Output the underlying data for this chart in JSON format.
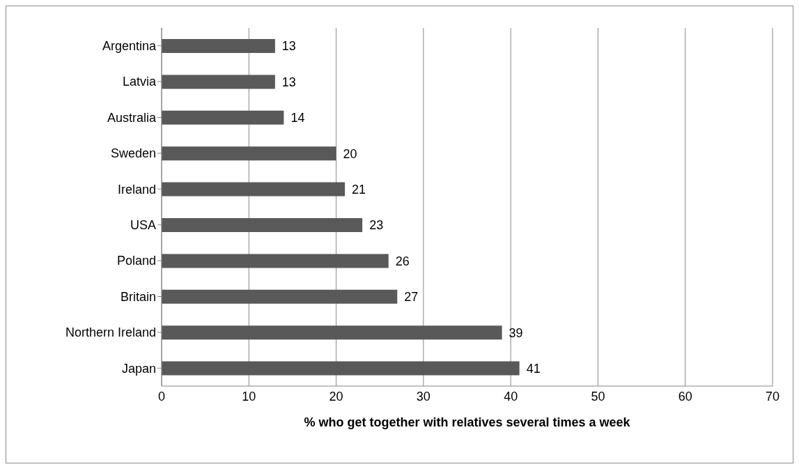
{
  "chart_data": {
    "type": "bar",
    "orientation": "horizontal",
    "xlabel": "% who get together with relatives several times a week",
    "categories": [
      "Argentina",
      "Latvia",
      "Australia",
      "Sweden",
      "Ireland",
      "USA",
      "Poland",
      "Britain",
      "Northern Ireland",
      "Japan"
    ],
    "values": [
      13,
      13,
      14,
      20,
      21,
      23,
      26,
      27,
      39,
      41
    ],
    "color": "#595959",
    "xlim": [
      0,
      70
    ],
    "xticks": [
      0,
      10,
      20,
      30,
      40,
      50,
      60,
      70
    ],
    "grid": "x",
    "data_labels": true
  }
}
